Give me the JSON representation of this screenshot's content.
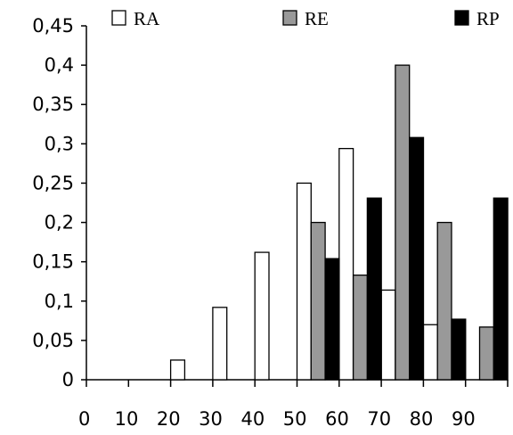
{
  "chart_data": {
    "type": "bar",
    "categories": [
      "0",
      "10",
      "20",
      "30",
      "40",
      "50",
      "60",
      "70",
      "80",
      "90"
    ],
    "series": [
      {
        "name": "RA",
        "color": "#ffffff",
        "values": [
          0,
          0,
          0.025,
          0.092,
          0.162,
          0.25,
          0.294,
          0.114,
          0.07,
          0
        ]
      },
      {
        "name": "RE",
        "color": "#999999",
        "values": [
          0,
          0,
          0,
          0,
          0,
          0.2,
          0.133,
          0.4,
          0.2,
          0.067
        ]
      },
      {
        "name": "RP",
        "color": "#000000",
        "values": [
          0,
          0,
          0,
          0,
          0,
          0.154,
          0.231,
          0.308,
          0.077,
          0.231
        ]
      }
    ],
    "yticks": [
      "0",
      "0,05",
      "0,1",
      "0,15",
      "0,2",
      "0,25",
      "0,3",
      "0,35",
      "0,4",
      "0,45"
    ],
    "ylim": [
      0,
      0.45
    ],
    "title": "",
    "xlabel": "",
    "ylabel": "",
    "grid": false,
    "legend_position": "top"
  }
}
